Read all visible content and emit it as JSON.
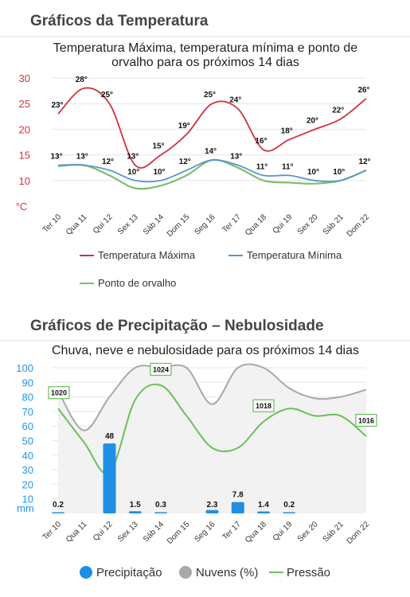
{
  "sections": {
    "temperature_title": "Gráficos da Temperatura",
    "precip_title": "Gráficos de Precipitação – Nebulosidade"
  },
  "colors": {
    "max": "#d0343d",
    "min": "#5b95cf",
    "dew": "#7cc06d",
    "precip": "#1f8fe5",
    "clouds": "#a8a8a8",
    "pressure": "#6cbf5a",
    "temp_axis": "#d0343d",
    "precip_axis": "#2196f3"
  },
  "chart_data": [
    {
      "type": "line",
      "title_lines": [
        "Temperatura Máxima, temperatura mínima e ponto de",
        "orvalho para os próximos 14 dias"
      ],
      "categories": [
        "Ter 10",
        "Qua 11",
        "Qui 12",
        "Sex 13",
        "Sáb 14",
        "Dom 15",
        "Seg 16",
        "Ter 17",
        "Qua 18",
        "Qui 19",
        "Sex 20",
        "Sáb 21",
        "Dom 22"
      ],
      "y_ticks": [
        "30",
        "25",
        "20",
        "15",
        "10"
      ],
      "y_unit": "°C",
      "ylim": [
        5,
        30
      ],
      "series": [
        {
          "name": "Temperatura Máxima",
          "values": [
            23,
            28,
            25,
            13,
            15,
            19,
            25,
            24,
            16,
            18,
            20,
            22,
            26
          ],
          "labels": [
            "23°",
            "28°",
            "25°",
            "13°",
            "15°",
            "19°",
            "25°",
            "24°",
            "16°",
            "18°",
            "20°",
            "22°",
            "26°"
          ]
        },
        {
          "name": "Temperatura Mínima",
          "values": [
            13,
            13,
            12,
            10,
            10,
            12,
            14,
            13,
            11,
            11,
            10,
            10,
            12
          ],
          "labels": [
            "13°",
            "13°",
            "12°",
            "10°",
            "10°",
            "12°",
            "14°",
            "13°",
            "11°",
            "11°",
            "10°",
            "10°",
            "12°"
          ]
        },
        {
          "name": "Ponto de orvalho",
          "values": [
            12.8,
            13,
            11,
            8.5,
            9,
            11,
            14,
            12.5,
            10,
            9.6,
            9.4,
            10,
            12
          ]
        }
      ],
      "legend": [
        "Temperatura Máxima",
        "Temperatura Mínima",
        "Ponto de orvalho"
      ]
    },
    {
      "type": "bar",
      "title": "Chuva, neve e nebulosidade para os próximos 14 dias",
      "categories": [
        "Ter 10",
        "Qua 11",
        "Qui 12",
        "Sex 13",
        "Sáb 14",
        "Dom 15",
        "Seg 16",
        "Ter 17",
        "Qua 18",
        "Qui 19",
        "Sex 20",
        "Sáb 21",
        "Dom 22"
      ],
      "y_ticks": [
        "100",
        "90",
        "80",
        "70",
        "60",
        "50",
        "40",
        "30",
        "20",
        "10"
      ],
      "y_unit": "mm",
      "ylim": [
        0,
        100
      ],
      "series": [
        {
          "name": "Precipitação",
          "type": "bar",
          "values": [
            0.2,
            0,
            48,
            1.5,
            0.3,
            0,
            2.3,
            7.8,
            1.4,
            0.2,
            0,
            0,
            0
          ],
          "labels": [
            "0.2",
            "",
            "48",
            "1.5",
            "0.3",
            "",
            "2.3",
            "7.8",
            "1.4",
            "0.2",
            "",
            "",
            ""
          ]
        },
        {
          "name": "Nuvens (%)",
          "type": "area",
          "values": [
            84,
            57,
            80,
            100,
            100,
            100,
            75,
            100,
            100,
            86,
            79,
            80,
            85
          ]
        },
        {
          "name": "Pressão",
          "type": "line",
          "values": [
            72,
            49,
            28,
            78,
            88,
            67,
            45,
            45,
            63,
            72,
            67,
            67,
            53
          ]
        }
      ],
      "pressure_labels": [
        {
          "index": 0,
          "text": "1020"
        },
        {
          "index": 4,
          "text": "1024"
        },
        {
          "index": 8,
          "text": "1018"
        },
        {
          "index": 12,
          "text": "1016"
        }
      ],
      "legend": [
        "Precipitação",
        "Nuvens (%)",
        "Pressão"
      ]
    }
  ]
}
